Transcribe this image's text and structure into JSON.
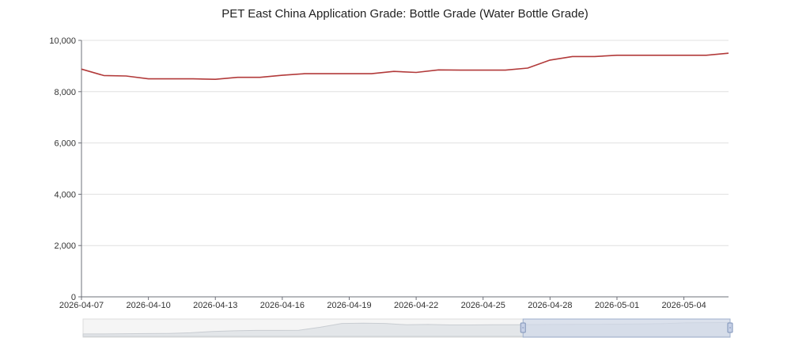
{
  "chart_data": {
    "type": "line",
    "title": "PET East China Application Grade: Bottle Grade (Water Bottle Grade)",
    "xlabel": "",
    "ylabel": "",
    "ylim": [
      0,
      10000
    ],
    "y_ticks": [
      0,
      2000,
      4000,
      6000,
      8000,
      10000
    ],
    "y_tick_labels": [
      "0",
      "2,000",
      "4,000",
      "6,000",
      "8,000",
      "10,000"
    ],
    "x_tick_labels": [
      "2026-04-07",
      "2026-04-10",
      "2026-04-13",
      "2026-04-16",
      "2026-04-19",
      "2026-04-22",
      "2026-04-25",
      "2026-04-28",
      "2026-05-01",
      "2026-05-04"
    ],
    "grid": true,
    "series": [
      {
        "color": "#b23a3a",
        "x": [
          "2026-04-07",
          "2026-04-08",
          "2026-04-09",
          "2026-04-10",
          "2026-04-11",
          "2026-04-12",
          "2026-04-13",
          "2026-04-14",
          "2026-04-15",
          "2026-04-16",
          "2026-04-17",
          "2026-04-18",
          "2026-04-19",
          "2026-04-20",
          "2026-04-21",
          "2026-04-22",
          "2026-04-23",
          "2026-04-24",
          "2026-04-25",
          "2026-04-26",
          "2026-04-27",
          "2026-04-28",
          "2026-04-29",
          "2026-04-30",
          "2026-05-01",
          "2026-05-02",
          "2026-05-03",
          "2026-05-04",
          "2026-05-05",
          "2026-05-06"
        ],
        "values": [
          8880,
          8630,
          8610,
          8500,
          8500,
          8500,
          8480,
          8560,
          8560,
          8640,
          8700,
          8700,
          8700,
          8700,
          8790,
          8750,
          8850,
          8840,
          8840,
          8840,
          8920,
          9230,
          9370,
          9370,
          9420,
          9420,
          9420,
          9420,
          9420,
          9500
        ]
      }
    ],
    "overview_slider": {
      "window_start_fraction": 0.68,
      "window_end_fraction": 1.0,
      "background_color": "#f5f5f5",
      "window_color": "#d0d8e8"
    }
  }
}
